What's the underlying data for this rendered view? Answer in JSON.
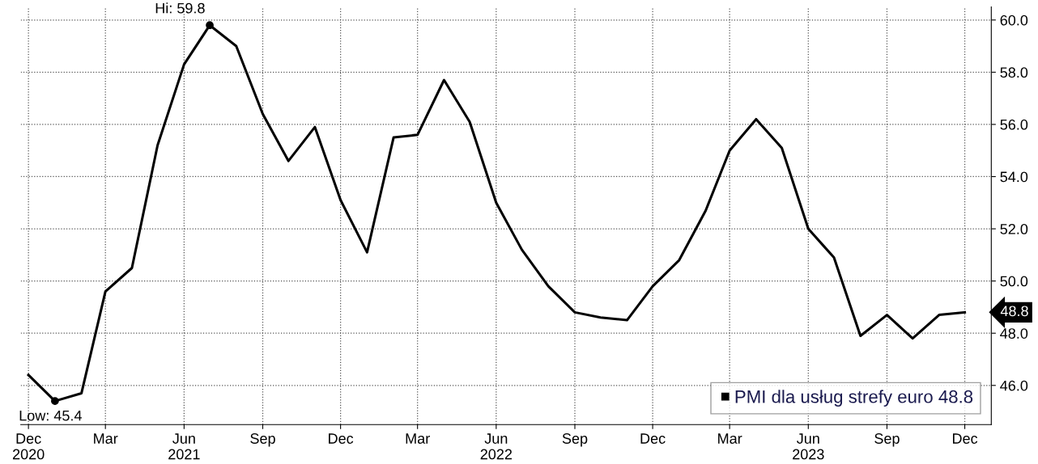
{
  "chart_data": {
    "type": "line",
    "x": [
      "2020-12",
      "2021-01",
      "2021-02",
      "2021-03",
      "2021-04",
      "2021-05",
      "2021-06",
      "2021-07",
      "2021-08",
      "2021-09",
      "2021-10",
      "2021-11",
      "2021-12",
      "2022-01",
      "2022-02",
      "2022-03",
      "2022-04",
      "2022-05",
      "2022-06",
      "2022-07",
      "2022-08",
      "2022-09",
      "2022-10",
      "2022-11",
      "2022-12",
      "2023-01",
      "2023-02",
      "2023-03",
      "2023-04",
      "2023-05",
      "2023-06",
      "2023-07",
      "2023-08",
      "2023-09",
      "2023-10",
      "2023-11",
      "2023-12"
    ],
    "series": [
      {
        "name": "PMI dla usług strefy euro 48.8",
        "color": "#000000",
        "values": [
          46.4,
          45.4,
          45.7,
          49.6,
          50.5,
          55.2,
          58.3,
          59.8,
          59.0,
          56.4,
          54.6,
          55.9,
          53.1,
          51.1,
          55.5,
          55.6,
          57.7,
          56.1,
          53.0,
          51.2,
          49.8,
          48.8,
          48.6,
          48.5,
          49.8,
          50.8,
          52.7,
          55.0,
          56.2,
          55.1,
          52.0,
          50.9,
          47.9,
          48.7,
          47.8,
          48.7,
          48.8
        ]
      }
    ],
    "xlim": [
      "2020-11-22",
      "2024-01-01"
    ],
    "xticks": [
      {
        "value": "2020-12",
        "label": "Dec\n2020"
      },
      {
        "value": "2021-03",
        "label": "Mar"
      },
      {
        "value": "2021-06",
        "label": "Jun\n2021"
      },
      {
        "value": "2021-09",
        "label": "Sep"
      },
      {
        "value": "2021-12",
        "label": "Dec"
      },
      {
        "value": "2022-03",
        "label": "Mar"
      },
      {
        "value": "2022-06",
        "label": "Jun\n2022"
      },
      {
        "value": "2022-09",
        "label": "Sep"
      },
      {
        "value": "2022-12",
        "label": "Dec"
      },
      {
        "value": "2023-03",
        "label": "Mar"
      },
      {
        "value": "2023-06",
        "label": "Jun\n2023"
      },
      {
        "value": "2023-09",
        "label": "Sep"
      },
      {
        "value": "2023-12",
        "label": "Dec"
      }
    ],
    "ylim": [
      44.5,
      60.5
    ],
    "yticks": [
      {
        "value": 46,
        "label": "46.0"
      },
      {
        "value": 48,
        "label": "48.0"
      },
      {
        "value": 50,
        "label": "50.0"
      },
      {
        "value": 52,
        "label": "52.0"
      },
      {
        "value": 54,
        "label": "54.0"
      },
      {
        "value": 56,
        "label": "56.0"
      },
      {
        "value": 58,
        "label": "58.0"
      },
      {
        "value": 60,
        "label": "60.0"
      }
    ],
    "annotations": [
      {
        "text": "Hi: 59.8",
        "x": "2021-07",
        "y": 59.8
      },
      {
        "text": "Low: 45.4",
        "x": "2021-01",
        "y": 45.4
      },
      {
        "text": "48.8",
        "x": "2023-12",
        "y": 48.8
      }
    ],
    "grid": true,
    "legend": "bottom right",
    "marker": "none",
    "line_style": "solid"
  }
}
